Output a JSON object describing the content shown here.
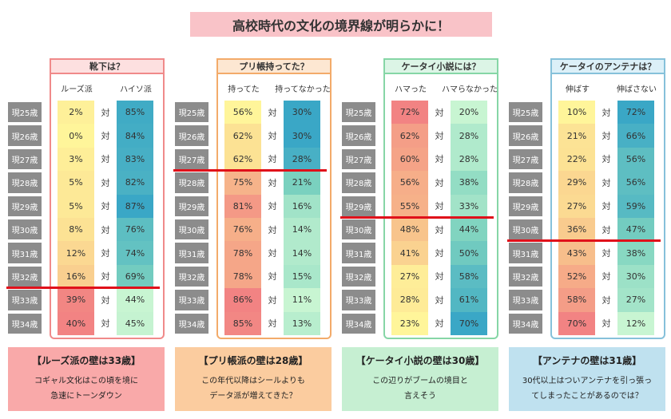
{
  "title": "高校時代の文化の境界線が明らかに！",
  "ages": [
    "現25歳",
    "現26歳",
    "現27歳",
    "現28歳",
    "現29歳",
    "現30歳",
    "現31歳",
    "現32歳",
    "現33歳",
    "現34歳"
  ],
  "vs": "対",
  "panels": [
    {
      "question": "靴下は？",
      "columns": [
        "ルーズ派",
        "ハイソ派"
      ],
      "rows": [
        [
          "2%",
          "85%"
        ],
        [
          "0%",
          "84%"
        ],
        [
          "3%",
          "83%"
        ],
        [
          "5%",
          "82%"
        ],
        [
          "5%",
          "87%"
        ],
        [
          "8%",
          "76%"
        ],
        [
          "12%",
          "74%"
        ],
        [
          "16%",
          "69%"
        ],
        [
          "39%",
          "44%"
        ],
        [
          "40%",
          "45%"
        ]
      ],
      "conclusion": {
        "title": "【ルーズ派の壁は33歳】",
        "lines": [
          "コギャル文化はこの頃を境に",
          "急速にトーンダウン"
        ]
      }
    },
    {
      "question": "プリ帳持ってた？",
      "columns": [
        "持ってた",
        "持ってなかった"
      ],
      "rows": [
        [
          "56%",
          "30%"
        ],
        [
          "62%",
          "30%"
        ],
        [
          "62%",
          "28%"
        ],
        [
          "75%",
          "21%"
        ],
        [
          "81%",
          "16%"
        ],
        [
          "76%",
          "14%"
        ],
        [
          "78%",
          "14%"
        ],
        [
          "78%",
          "15%"
        ],
        [
          "86%",
          "11%"
        ],
        [
          "85%",
          "13%"
        ]
      ],
      "conclusion": {
        "title": "【プリ帳派の壁は28歳】",
        "lines": [
          "この年代以降はシールよりも",
          "データ派が増えてきた？"
        ]
      }
    },
    {
      "question": "ケータイ小説には？",
      "columns": [
        "ハマった",
        "ハマらなかった"
      ],
      "rows": [
        [
          "72%",
          "20%"
        ],
        [
          "62%",
          "28%"
        ],
        [
          "60%",
          "28%"
        ],
        [
          "56%",
          "38%"
        ],
        [
          "55%",
          "33%"
        ],
        [
          "48%",
          "44%"
        ],
        [
          "41%",
          "50%"
        ],
        [
          "27%",
          "58%"
        ],
        [
          "28%",
          "61%"
        ],
        [
          "23%",
          "70%"
        ]
      ],
      "conclusion": {
        "title": "【ケータイ小説の壁は30歳】",
        "lines": [
          "この辺りがブームの境目と",
          "言えそう"
        ]
      }
    },
    {
      "question": "ケータイのアンテナは？",
      "columns": [
        "伸ばす",
        "伸ばさない"
      ],
      "rows": [
        [
          "10%",
          "72%"
        ],
        [
          "21%",
          "66%"
        ],
        [
          "22%",
          "56%"
        ],
        [
          "29%",
          "56%"
        ],
        [
          "27%",
          "59%"
        ],
        [
          "36%",
          "47%"
        ],
        [
          "43%",
          "38%"
        ],
        [
          "52%",
          "30%"
        ],
        [
          "58%",
          "27%"
        ],
        [
          "70%",
          "12%"
        ]
      ],
      "conclusion": {
        "title": "【アンテナの壁は31歳】",
        "lines": [
          "30代以上はついアンテナを引っ張っ",
          "てしまったことがあるのでは？"
        ]
      }
    }
  ]
}
